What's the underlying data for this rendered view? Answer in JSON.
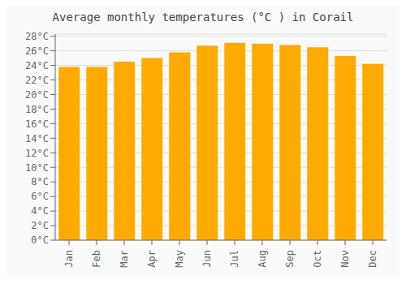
{
  "chart_data": {
    "type": "bar",
    "title": "Average monthly temperatures (°C ) in Corail",
    "categories": [
      "Jan",
      "Feb",
      "Mar",
      "Apr",
      "May",
      "Jun",
      "Jul",
      "Aug",
      "Sep",
      "Oct",
      "Nov",
      "Dec"
    ],
    "values": [
      23.8,
      23.8,
      24.5,
      25.0,
      25.8,
      26.7,
      27.1,
      27.0,
      26.8,
      26.5,
      25.3,
      24.2
    ],
    "color": "#FFAA00",
    "ylim": [
      0,
      28.3
    ],
    "yticks": [
      {
        "value": 0,
        "label": "0°C"
      },
      {
        "value": 2,
        "label": "2°C"
      },
      {
        "value": 4,
        "label": "4°C"
      },
      {
        "value": 6,
        "label": "6°C"
      },
      {
        "value": 8,
        "label": "8°C"
      },
      {
        "value": 10,
        "label": "10°C"
      },
      {
        "value": 12,
        "label": "12°C"
      },
      {
        "value": 14,
        "label": "14°C"
      },
      {
        "value": 16,
        "label": "16°C"
      },
      {
        "value": 18,
        "label": "18°C"
      },
      {
        "value": 20,
        "label": "20°C"
      },
      {
        "value": 22,
        "label": "22°C"
      },
      {
        "value": 24,
        "label": "24°C"
      },
      {
        "value": 26,
        "label": "26°C"
      },
      {
        "value": 28,
        "label": "28°C"
      }
    ],
    "grid": true
  }
}
